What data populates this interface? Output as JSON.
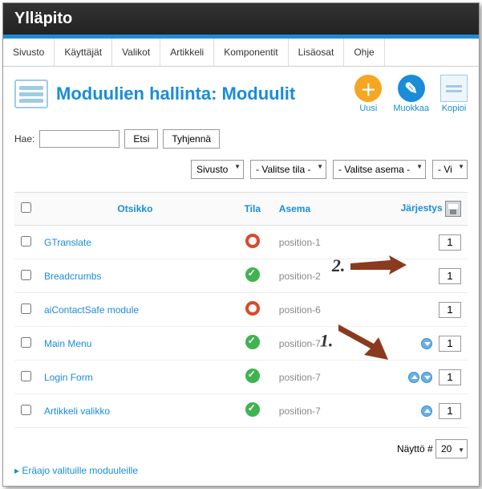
{
  "titlebar": "Ylläpito",
  "menu": [
    "Sivusto",
    "Käyttäjät",
    "Valikot",
    "Artikkeli",
    "Komponentit",
    "Lisäosat",
    "Ohje"
  ],
  "page": {
    "title": "Moduulien hallinta: Moduulit"
  },
  "toolbar": {
    "new": {
      "label": "Uusi",
      "color": "#f5a623"
    },
    "edit": {
      "label": "Muokkaa",
      "color": "#1a8cd8"
    },
    "copy": {
      "label": "Kopioi"
    }
  },
  "search": {
    "label": "Hae:",
    "value": "",
    "search_btn": "Etsi",
    "clear_btn": "Tyhjennä"
  },
  "filters": {
    "site": "Sivusto",
    "state": "- Valitse tila -",
    "position": "- Valitse asema -",
    "type": "- Vi"
  },
  "columns": {
    "title": "Otsikko",
    "state": "Tila",
    "position": "Asema",
    "order": "Järjestys"
  },
  "rows": [
    {
      "name": "GTranslate",
      "state": "red",
      "position": "position-1",
      "up": false,
      "down": false,
      "order": "1"
    },
    {
      "name": "Breadcrumbs",
      "state": "green",
      "position": "position-2",
      "up": false,
      "down": false,
      "order": "1"
    },
    {
      "name": "aiContactSafe module",
      "state": "red",
      "position": "position-6",
      "up": false,
      "down": false,
      "order": "1"
    },
    {
      "name": "Main Menu",
      "state": "green",
      "position": "position-7",
      "up": false,
      "down": true,
      "order": "1"
    },
    {
      "name": "Login Form",
      "state": "green",
      "position": "position-7",
      "up": true,
      "down": true,
      "order": "1"
    },
    {
      "name": "Artikkeli valikko",
      "state": "green",
      "position": "position-7",
      "up": true,
      "down": false,
      "order": "1"
    }
  ],
  "pager": {
    "label": "Näyttö #",
    "value": "20"
  },
  "batch": {
    "label": "Eräajo valituille moduuleille"
  },
  "annotations": {
    "one": "1.",
    "two": "2."
  }
}
